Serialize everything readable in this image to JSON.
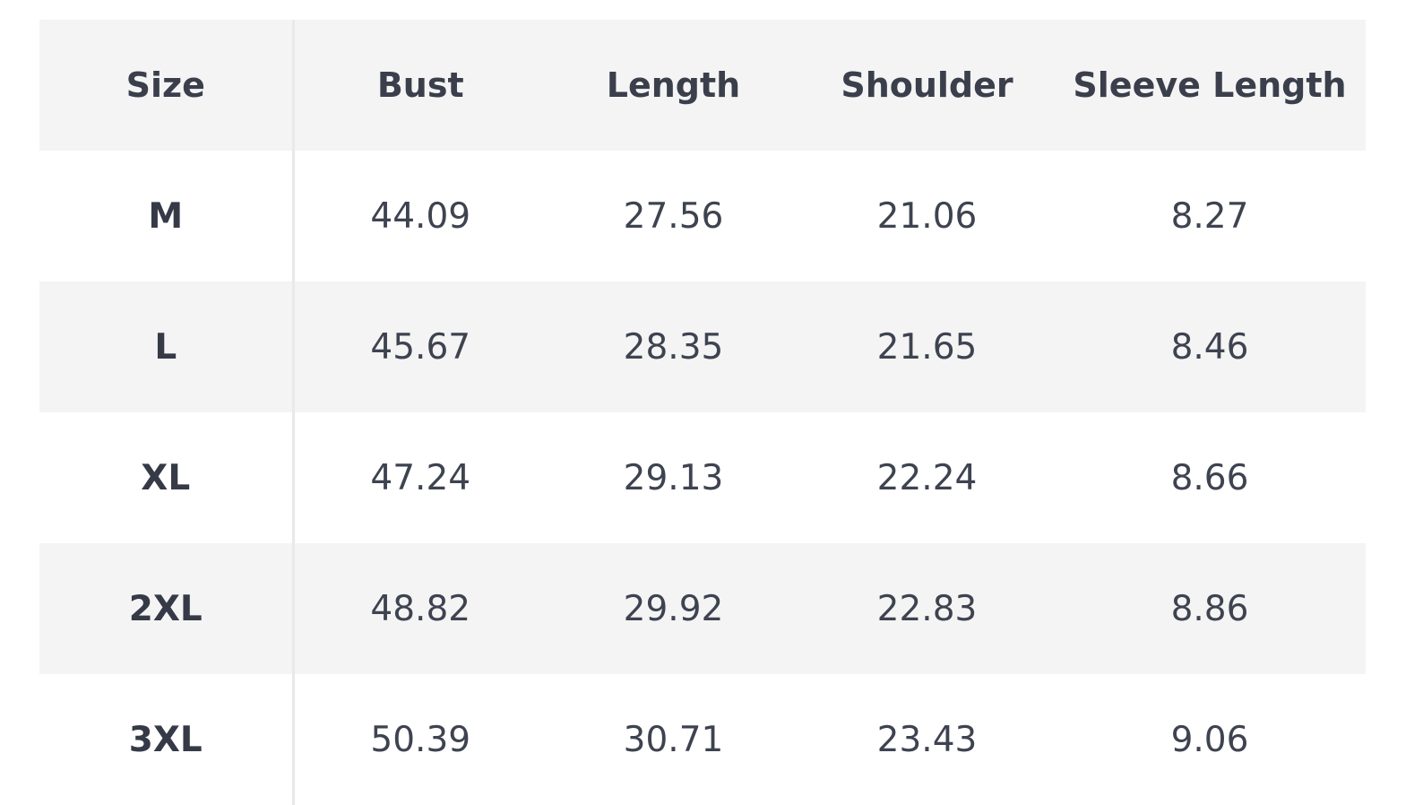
{
  "table": {
    "headers": [
      "Size",
      "Bust",
      "Length",
      "Shoulder",
      "Sleeve Length"
    ],
    "rows": [
      [
        "M",
        "44.09",
        "27.56",
        "21.06",
        "8.27"
      ],
      [
        "L",
        "45.67",
        "28.35",
        "21.65",
        "8.46"
      ],
      [
        "XL",
        "47.24",
        "29.13",
        "22.24",
        "8.66"
      ],
      [
        "2XL",
        "48.82",
        "29.92",
        "22.83",
        "8.86"
      ],
      [
        "3XL",
        "50.39",
        "30.71",
        "23.43",
        "9.06"
      ]
    ]
  },
  "colors": {
    "header_background": "#f4f4f5",
    "stripe_background": "#f4f4f5",
    "text": "#3a3f4b",
    "divider": "#e9e9eb"
  }
}
